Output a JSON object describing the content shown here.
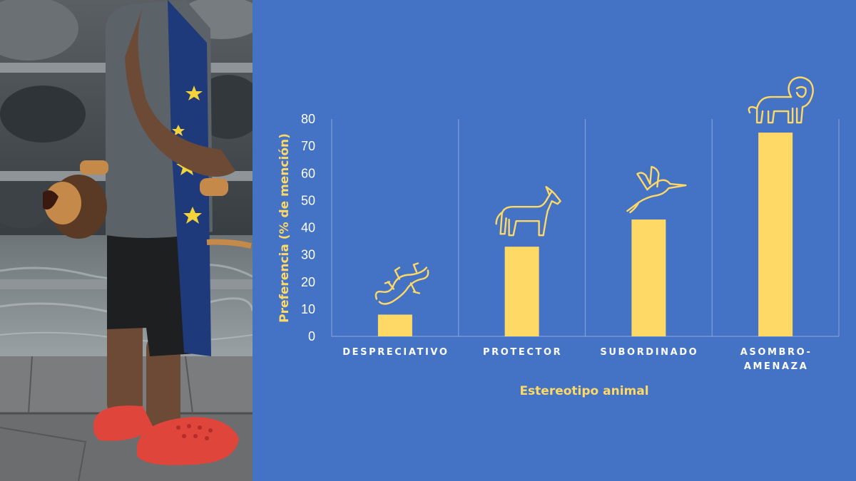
{
  "colors": {
    "background": "#4472c4",
    "bar": "#ffd966",
    "text": "#ffffff",
    "axis_title": "#ffd966",
    "gridline": "#7f9fd9"
  },
  "photo": {
    "description_icon": "photo-child-with-toy-lion"
  },
  "chart_data": {
    "type": "bar",
    "categories": [
      "DESPRECIATIVO",
      "PROTECTOR",
      "SUBORDINADO",
      "ASOMBRO-\nAMENAZA"
    ],
    "values": [
      8,
      33,
      43,
      75
    ],
    "xlabel": "Estereotipo animal",
    "ylabel": "Preferencia (% de mención)",
    "ylim": [
      0,
      80
    ],
    "yticks": [
      0,
      10,
      20,
      30,
      40,
      50,
      60,
      70,
      80
    ],
    "grid": "vertical separators",
    "icons": [
      "lizard-icon",
      "horse-icon",
      "hummingbird-icon",
      "lion-icon"
    ]
  }
}
